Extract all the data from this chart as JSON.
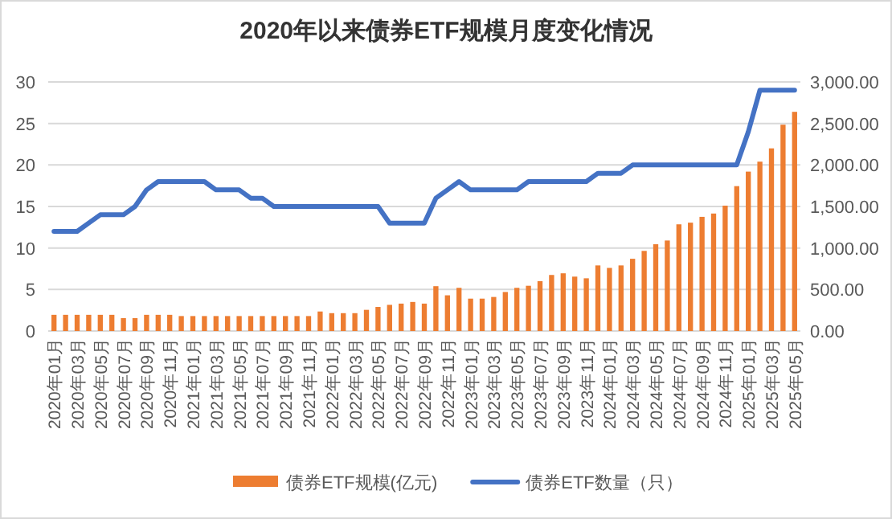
{
  "chart_data": {
    "type": "bar",
    "title": "2020年以来债券ETF规模月度变化情况",
    "categories": [
      "2020年01月",
      null,
      "2020年03月",
      null,
      "2020年05月",
      null,
      "2020年07月",
      null,
      "2020年09月",
      null,
      "2020年11月",
      null,
      "2021年01月",
      null,
      "2021年03月",
      null,
      "2021年05月",
      null,
      "2021年07月",
      null,
      "2021年09月",
      null,
      "2021年11月",
      null,
      "2022年01月",
      null,
      "2022年03月",
      null,
      "2022年05月",
      null,
      "2022年07月",
      null,
      "2022年09月",
      null,
      "2022年11月",
      null,
      "2023年01月",
      null,
      "2023年03月",
      null,
      "2023年05月",
      null,
      "2023年07月",
      null,
      "2023年09月",
      null,
      "2023年11月",
      null,
      "2024年01月",
      null,
      "2024年03月",
      null,
      "2024年05月",
      null,
      "2024年07月",
      null,
      "2024年09月",
      null,
      "2024年11月",
      null,
      "2025年01月",
      null,
      "2025年03月",
      null,
      "2025年05月"
    ],
    "series": [
      {
        "name": "债券ETF规模(亿元)",
        "axis": "y2",
        "color": "#ed7d31",
        "values": [
          195,
          195,
          195,
          195,
          195,
          195,
          155,
          155,
          195,
          195,
          195,
          180,
          180,
          180,
          180,
          180,
          180,
          180,
          180,
          180,
          180,
          180,
          180,
          235,
          215,
          215,
          215,
          255,
          290,
          315,
          330,
          350,
          330,
          540,
          430,
          520,
          390,
          390,
          410,
          470,
          520,
          545,
          600,
          675,
          695,
          655,
          635,
          790,
          760,
          790,
          870,
          965,
          1045,
          1090,
          1285,
          1305,
          1375,
          1415,
          1510,
          1745,
          1920,
          2040,
          2200,
          2485,
          2640
        ]
      },
      {
        "name": "债券ETF数量（只）",
        "type": "line",
        "color": "#4472c4",
        "values": [
          12,
          12,
          12,
          13,
          14,
          14,
          14,
          15,
          17,
          18,
          18,
          18,
          18,
          18,
          17,
          17,
          17,
          16,
          16,
          15,
          15,
          15,
          15,
          15,
          15,
          15,
          15,
          15,
          15,
          13,
          13,
          13,
          13,
          16,
          17,
          18,
          17,
          17,
          17,
          17,
          17,
          18,
          18,
          18,
          18,
          18,
          18,
          19,
          19,
          19,
          20,
          20,
          20,
          20,
          20,
          20,
          20,
          20,
          20,
          20,
          24,
          29,
          29,
          29,
          29
        ]
      }
    ],
    "ylim": [
      0,
      30
    ],
    "yticks": [
      0,
      5,
      10,
      15,
      20,
      25,
      30
    ],
    "y2lim": [
      0,
      3000
    ],
    "y2ticks": [
      {
        "value": 0,
        "label": "0.00"
      },
      {
        "value": 500,
        "label": "500.00"
      },
      {
        "value": 1000,
        "label": "1,000.00"
      },
      {
        "value": 1500,
        "label": "1,500.00"
      },
      {
        "value": 2000,
        "label": "2,000.00"
      },
      {
        "value": 2500,
        "label": "2,500.00"
      },
      {
        "value": 3000,
        "label": "3,000.00"
      }
    ],
    "grid": "y",
    "legend": "bottom"
  }
}
